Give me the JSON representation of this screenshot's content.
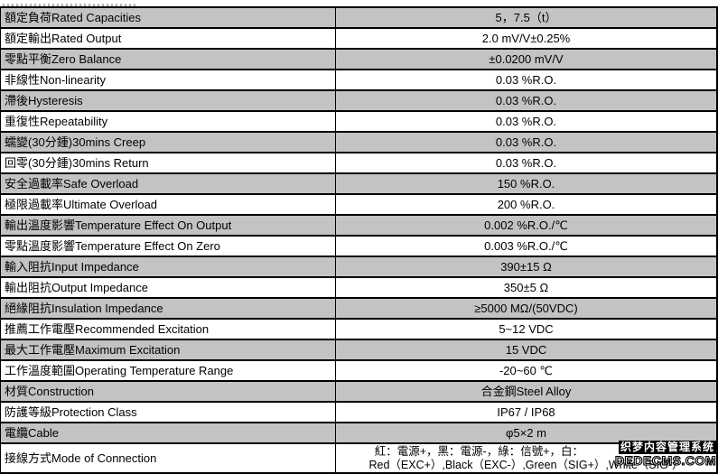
{
  "colors": {
    "row_shade": "#c3c3c3",
    "border": "#000000",
    "watermark_bg": "#000000",
    "watermark_fg": "#ffffff"
  },
  "table": {
    "rows": [
      {
        "label": "額定負荷Rated Capacities",
        "value": "5，7.5（t）"
      },
      {
        "label": "額定輸出Rated Output",
        "value": "2.0 mV/V±0.25%"
      },
      {
        "label": "零點平衡Zero Balance",
        "value": "±0.0200 mV/V"
      },
      {
        "label": "非線性Non-linearity",
        "value": "0.03 %R.O."
      },
      {
        "label": "滯後Hysteresis",
        "value": "0.03 %R.O."
      },
      {
        "label": "重復性Repeatability",
        "value": "0.03 %R.O."
      },
      {
        "label": "蠕變(30分鍾)30mins Creep",
        "value": "0.03 %R.O."
      },
      {
        "label": "回零(30分鍾)30mins Return",
        "value": "0.03 %R.O."
      },
      {
        "label": "安全過載率Safe Overload",
        "value": "150 %R.O."
      },
      {
        "label": "極限過載率Ultimate Overload",
        "value": "200 %R.O."
      },
      {
        "label": "輸出溫度影響Temperature Effect On Output",
        "value": "0.002 %R.O./℃"
      },
      {
        "label": "零點溫度影響Temperature Effect On Zero",
        "value": "0.003 %R.O./℃"
      },
      {
        "label": "輸入阻抗Input Impedance",
        "value": "390±15 Ω"
      },
      {
        "label": "輸出阻抗Output Impedance",
        "value": "350±5 Ω"
      },
      {
        "label": "絕緣阻抗Insulation Impedance",
        "value": "≥5000 MΩ/(50VDC)"
      },
      {
        "label": "推薦工作電壓Recommended Excitation",
        "value": "5~12 VDC"
      },
      {
        "label": "最大工作電壓Maximum Excitation",
        "value": "15 VDC"
      },
      {
        "label": "工作溫度範圍Operating Temperature Range",
        "value": "-20~60 ℃"
      },
      {
        "label": "材質Construction",
        "value": "合金鋼Steel Alloy"
      },
      {
        "label": "防護等級Protection Class",
        "value": "IP67 / IP68"
      },
      {
        "label": "電纜Cable",
        "value": "φ5×2 m"
      }
    ],
    "connection": {
      "label": "接線方式Mode of Connection",
      "line1_zh": "紅：電源+，黑：電源-，綠：信號+，白：",
      "line2_en": "Red（EXC+）,Black（EXC-）,Green（SIG+）,White（SIG-）"
    }
  },
  "watermark": {
    "line1": "织梦内容管理系统",
    "line2": "DEDECMS.COM"
  }
}
